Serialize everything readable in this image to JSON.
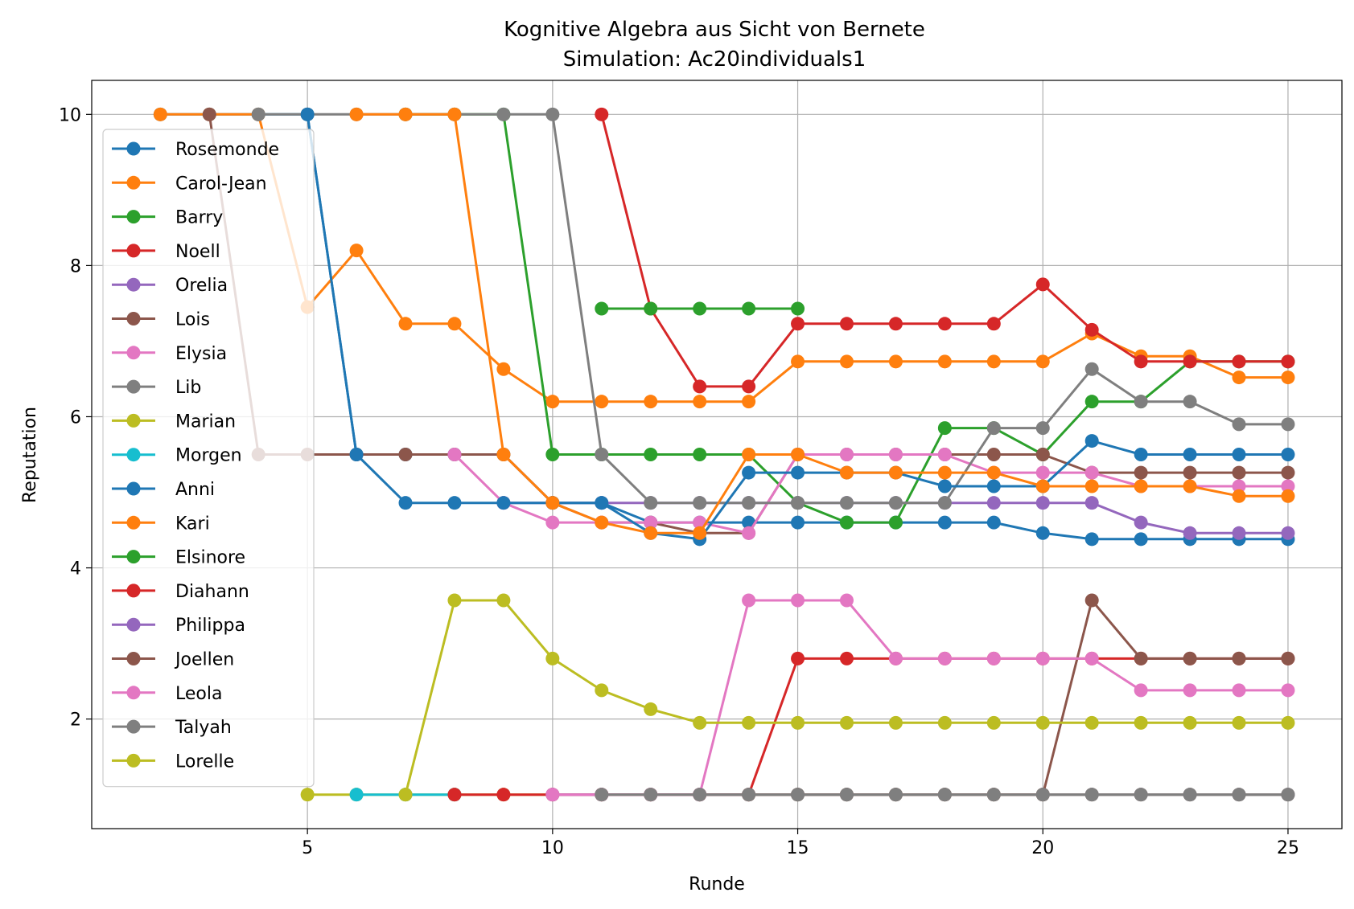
{
  "chart_data": {
    "type": "line",
    "title": "Kognitive Algebra aus Sicht von Bernete",
    "subtitle": "Simulation: Ac20individuals1",
    "xlabel": "Runde",
    "ylabel": "Reputation",
    "xlim": [
      0.6,
      26.1
    ],
    "ylim": [
      0.55,
      10.45
    ],
    "xticks": [
      5,
      10,
      15,
      20,
      25
    ],
    "yticks": [
      2,
      4,
      6,
      8,
      10
    ],
    "grid": true,
    "legend_position": "upper-left",
    "series": [
      {
        "name": "Rosemonde",
        "color": "#1f77b4",
        "x": [
          2,
          3,
          4,
          5,
          6,
          7,
          8,
          9,
          10,
          11,
          12,
          13,
          14,
          15,
          16,
          17,
          18,
          19,
          20,
          21,
          22,
          23,
          24,
          25
        ],
        "y": [
          10,
          10,
          10,
          10,
          5.5,
          5.5,
          5.5,
          5.5,
          4.86,
          4.86,
          4.6,
          4.6,
          4.6,
          4.6,
          4.6,
          4.6,
          4.6,
          4.6,
          4.46,
          4.38,
          4.38,
          4.38,
          4.38,
          4.38
        ]
      },
      {
        "name": "Carol-Jean",
        "color": "#ff7f0e",
        "x": [
          2,
          3,
          4,
          5,
          6,
          7,
          8,
          9,
          10,
          11,
          12,
          13,
          14,
          15,
          16,
          17,
          18,
          19,
          20,
          21,
          22,
          23,
          24,
          25
        ],
        "y": [
          10,
          10,
          10,
          7.45,
          8.2,
          7.23,
          7.23,
          6.63,
          6.2,
          6.2,
          6.2,
          6.2,
          6.2,
          6.73,
          6.73,
          6.73,
          6.73,
          6.73,
          6.73,
          7.1,
          6.8,
          6.8,
          6.52,
          6.52
        ]
      },
      {
        "name": "Barry",
        "color": "#2ca02c",
        "x": [
          7,
          8,
          9,
          10,
          11,
          12,
          13,
          14,
          15,
          16,
          17,
          18,
          19,
          20,
          21,
          22,
          23,
          24,
          25
        ],
        "y": [
          10,
          10,
          10,
          5.5,
          5.5,
          5.5,
          5.5,
          5.5,
          4.86,
          4.6,
          4.6,
          5.85,
          5.85,
          5.5,
          6.2,
          6.2,
          6.73,
          6.73,
          6.73
        ]
      },
      {
        "name": "Noell",
        "color": "#d62728",
        "x": [
          11,
          12,
          13,
          14,
          15,
          16,
          17,
          18,
          19,
          20,
          21,
          22,
          23,
          24,
          25
        ],
        "y": [
          10,
          7.43,
          6.4,
          6.4,
          7.23,
          7.23,
          7.23,
          7.23,
          7.23,
          7.75,
          7.15,
          6.73,
          6.73,
          6.73,
          6.73
        ]
      },
      {
        "name": "Orelia",
        "color": "#9467bd",
        "x": [
          9,
          10,
          11,
          12,
          13,
          14,
          15,
          16,
          17,
          18,
          19,
          20,
          21,
          22,
          23,
          24,
          25
        ],
        "y": [
          4.86,
          4.86,
          4.86,
          4.86,
          4.86,
          4.86,
          4.86,
          4.86,
          4.86,
          4.86,
          4.86,
          4.86,
          4.86,
          4.6,
          4.46,
          4.46,
          4.46
        ]
      },
      {
        "name": "Lois",
        "color": "#8c564b",
        "x": [
          3,
          4,
          5,
          6,
          7,
          8,
          9,
          10,
          11,
          12,
          13,
          14,
          15,
          16,
          17,
          18,
          19,
          20,
          21,
          22,
          23,
          24,
          25
        ],
        "y": [
          10,
          5.5,
          5.5,
          5.5,
          5.5,
          5.5,
          5.5,
          4.86,
          4.6,
          4.6,
          4.46,
          4.46,
          5.5,
          5.5,
          5.5,
          5.5,
          5.5,
          5.5,
          5.26,
          5.26,
          5.26,
          5.26,
          5.26
        ]
      },
      {
        "name": "Elysia",
        "color": "#e377c2",
        "x": [
          8,
          9,
          10,
          11,
          12,
          13,
          14,
          15,
          16,
          17,
          18,
          19,
          20,
          21,
          22,
          23,
          24,
          25
        ],
        "y": [
          5.5,
          4.86,
          4.6,
          4.6,
          4.6,
          4.6,
          4.46,
          5.5,
          5.5,
          5.5,
          5.5,
          5.26,
          5.26,
          5.26,
          5.08,
          5.08,
          5.08,
          5.08
        ]
      },
      {
        "name": "Lib",
        "color": "#7f7f7f",
        "x": [
          4,
          5,
          6,
          7,
          8,
          9,
          10,
          11,
          12,
          13,
          14,
          15,
          16,
          17,
          18,
          19,
          20,
          21,
          22,
          23,
          24,
          25
        ],
        "y": [
          10,
          10,
          10,
          10,
          10,
          10,
          10,
          5.5,
          4.86,
          4.86,
          4.86,
          4.86,
          4.86,
          4.86,
          4.86,
          5.85,
          5.85,
          6.63,
          6.2,
          6.2,
          5.9,
          5.9
        ]
      },
      {
        "name": "Marian",
        "color": "#bcbd22",
        "x": [
          5,
          6,
          7,
          8,
          9,
          10,
          11,
          12,
          13,
          14,
          15,
          16,
          17,
          18,
          19,
          20,
          21,
          22,
          23,
          24,
          25
        ],
        "y": [
          1,
          1,
          1,
          1,
          1,
          1,
          1,
          1,
          1,
          1,
          1,
          1,
          1,
          1,
          1,
          1,
          1,
          1,
          1,
          1,
          1
        ]
      },
      {
        "name": "Morgen",
        "color": "#17becf",
        "x": [
          6,
          7,
          8
        ],
        "y": [
          1,
          1,
          1
        ]
      },
      {
        "name": "Anni",
        "color": "#1f77b4",
        "x": [
          5,
          6,
          7,
          8,
          9,
          10,
          11,
          12,
          13,
          14,
          15,
          16,
          17,
          18,
          19,
          20,
          21,
          22,
          23,
          24,
          25
        ],
        "y": [
          10,
          5.5,
          4.86,
          4.86,
          4.86,
          4.86,
          4.86,
          4.46,
          4.38,
          5.26,
          5.26,
          5.26,
          5.26,
          5.08,
          5.08,
          5.08,
          5.68,
          5.5,
          5.5,
          5.5,
          5.5
        ]
      },
      {
        "name": "Kari",
        "color": "#ff7f0e",
        "x": [
          6,
          7,
          8,
          9,
          10,
          11,
          12,
          13,
          14,
          15,
          16,
          17,
          18,
          19,
          20,
          21,
          22,
          23,
          24,
          25
        ],
        "y": [
          10,
          10,
          10,
          5.5,
          4.86,
          4.6,
          4.46,
          4.46,
          5.5,
          5.5,
          5.26,
          5.26,
          5.26,
          5.26,
          5.08,
          5.08,
          5.08,
          5.08,
          4.95,
          4.95
        ]
      },
      {
        "name": "Elsinore",
        "color": "#2ca02c",
        "x": [
          11,
          12,
          13,
          14,
          15
        ],
        "y": [
          7.43,
          7.43,
          7.43,
          7.43,
          7.43
        ]
      },
      {
        "name": "Diahann",
        "color": "#d62728",
        "x": [
          8,
          9,
          10,
          11,
          12,
          13,
          14,
          15,
          16,
          17,
          18,
          19,
          20,
          21,
          22,
          23,
          24,
          25
        ],
        "y": [
          1,
          1,
          1,
          1,
          1,
          1,
          1,
          2.8,
          2.8,
          2.8,
          2.8,
          2.8,
          2.8,
          2.8,
          2.8,
          2.8,
          2.8,
          2.8
        ]
      },
      {
        "name": "Philippa",
        "color": "#9467bd",
        "x": [
          10,
          11,
          12,
          13,
          14,
          15,
          16,
          17,
          18,
          19,
          20,
          21,
          22,
          23,
          24,
          25
        ],
        "y": [
          1,
          1,
          1,
          1,
          1,
          1,
          1,
          1,
          1,
          1,
          1,
          1,
          1,
          1,
          1,
          1
        ]
      },
      {
        "name": "Joellen",
        "color": "#8c564b",
        "x": [
          11,
          12,
          13,
          14,
          15,
          16,
          17,
          18,
          19,
          20,
          21,
          22,
          23,
          24,
          25
        ],
        "y": [
          1,
          1,
          1,
          1,
          1,
          1,
          1,
          1,
          1,
          1,
          3.57,
          2.8,
          2.8,
          2.8,
          2.8
        ]
      },
      {
        "name": "Leola",
        "color": "#e377c2",
        "x": [
          10,
          11,
          12,
          13,
          14,
          15,
          16,
          17,
          18,
          19,
          20,
          21,
          22,
          23,
          24,
          25
        ],
        "y": [
          1,
          1,
          1,
          1,
          3.57,
          3.57,
          3.57,
          2.8,
          2.8,
          2.8,
          2.8,
          2.8,
          2.38,
          2.38,
          2.38,
          2.38
        ]
      },
      {
        "name": "Talyah",
        "color": "#7f7f7f",
        "x": [
          11,
          12,
          13,
          14,
          15,
          16,
          17,
          18,
          19,
          20,
          21,
          22,
          23,
          24,
          25
        ],
        "y": [
          1,
          1,
          1,
          1,
          1,
          1,
          1,
          1,
          1,
          1,
          1,
          1,
          1,
          1,
          1
        ]
      },
      {
        "name": "Lorelle",
        "color": "#bcbd22",
        "x": [
          7,
          8,
          9,
          10,
          11,
          12,
          13,
          14,
          15,
          16,
          17,
          18,
          19,
          20,
          21,
          22,
          23,
          24,
          25
        ],
        "y": [
          1,
          3.57,
          3.57,
          2.8,
          2.38,
          2.13,
          1.95,
          1.95,
          1.95,
          1.95,
          1.95,
          1.95,
          1.95,
          1.95,
          1.95,
          1.95,
          1.95,
          1.95,
          1.95
        ]
      }
    ]
  }
}
